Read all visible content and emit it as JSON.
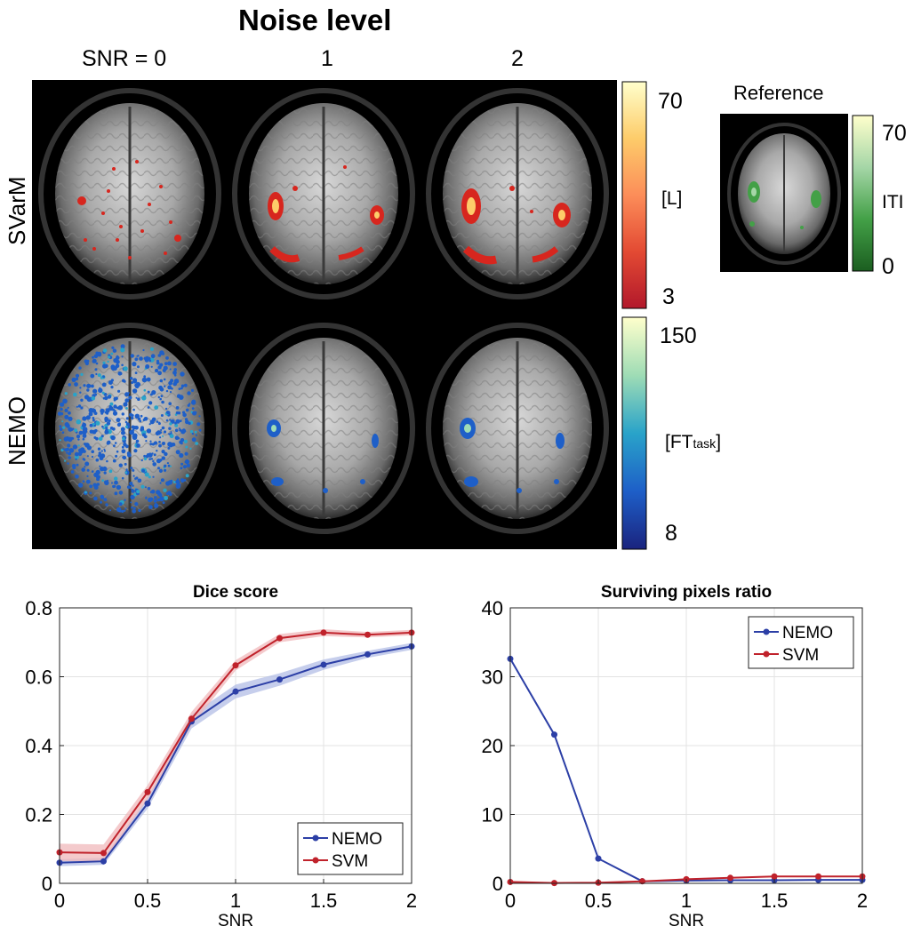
{
  "figure": {
    "title": "Noise level",
    "columns": [
      "SNR = 0",
      "1",
      "2"
    ],
    "rows": [
      "SVarM",
      "NEMO"
    ],
    "colorbars": {
      "svarm": {
        "max": "70",
        "min": "3",
        "unit": "[L]",
        "colors": [
          "#b2182b",
          "#e34a33",
          "#fc8d59",
          "#fdcc6a",
          "#ffffcc"
        ]
      },
      "nemo": {
        "max": "150",
        "min": "8",
        "unit_main": "[FT",
        "unit_sub": "task",
        "unit_end": "]",
        "colors": [
          "#1a237e",
          "#1e5fc8",
          "#29a3c9",
          "#9fdcb5",
          "#ffffcc"
        ]
      },
      "reference": {
        "title": "Reference",
        "max": "70",
        "min": "0",
        "unit": "ITI",
        "colors": [
          "#1b5e20",
          "#43a047",
          "#a5d6a7",
          "#ffffcc"
        ]
      }
    },
    "icons": [
      "brain-slice-image"
    ]
  },
  "chart_data": [
    {
      "type": "line",
      "title": "Dice score",
      "xlabel": "SNR",
      "ylabel": "",
      "x": [
        0,
        0.25,
        0.5,
        0.75,
        1,
        1.25,
        1.5,
        1.75,
        2
      ],
      "xlim": [
        0,
        2
      ],
      "ylim": [
        0,
        0.8
      ],
      "xticks": [
        "0",
        "0.5",
        "1",
        "1.5",
        "2"
      ],
      "xtick_values": [
        0,
        0.5,
        1,
        1.5,
        2
      ],
      "yticks": [
        "0",
        "0.2",
        "0.4",
        "0.6",
        "0.8"
      ],
      "ytick_values": [
        0,
        0.2,
        0.4,
        0.6,
        0.8
      ],
      "grid": true,
      "legend": "bottom-right",
      "series": [
        {
          "name": "NEMO",
          "color": "#2c3fa6",
          "band": "#b3bde6",
          "values": [
            0.06,
            0.064,
            0.232,
            0.47,
            0.557,
            0.592,
            0.635,
            0.665,
            0.688
          ],
          "err": [
            0.01,
            0.01,
            0.015,
            0.02,
            0.02,
            0.018,
            0.015,
            0.01,
            0.01
          ]
        },
        {
          "name": "SVM",
          "color": "#c0222b",
          "band": "#f0b8bb",
          "values": [
            0.09,
            0.088,
            0.265,
            0.478,
            0.633,
            0.712,
            0.728,
            0.722,
            0.728
          ],
          "err": [
            0.025,
            0.025,
            0.02,
            0.02,
            0.015,
            0.012,
            0.01,
            0.008,
            0.008
          ]
        }
      ]
    },
    {
      "type": "line",
      "title": "Surviving pixels ratio",
      "xlabel": "SNR",
      "ylabel": "",
      "x": [
        0,
        0.25,
        0.5,
        0.75,
        1,
        1.25,
        1.5,
        1.75,
        2
      ],
      "xlim": [
        0,
        2
      ],
      "ylim": [
        0,
        40
      ],
      "xticks": [
        "0",
        "0.5",
        "1",
        "1.5",
        "2"
      ],
      "xtick_values": [
        0,
        0.5,
        1,
        1.5,
        2
      ],
      "yticks": [
        "0",
        "10",
        "20",
        "30",
        "40"
      ],
      "ytick_values": [
        0,
        10,
        20,
        30,
        40
      ],
      "grid": true,
      "legend": "top-right",
      "series": [
        {
          "name": "NEMO",
          "color": "#2c3fa6",
          "values": [
            32.6,
            21.6,
            3.6,
            0.3,
            0.4,
            0.45,
            0.45,
            0.5,
            0.5
          ]
        },
        {
          "name": "SVM",
          "color": "#c0222b",
          "values": [
            0.2,
            0.05,
            0.1,
            0.3,
            0.6,
            0.8,
            1.0,
            1.0,
            1.0
          ]
        }
      ]
    }
  ]
}
